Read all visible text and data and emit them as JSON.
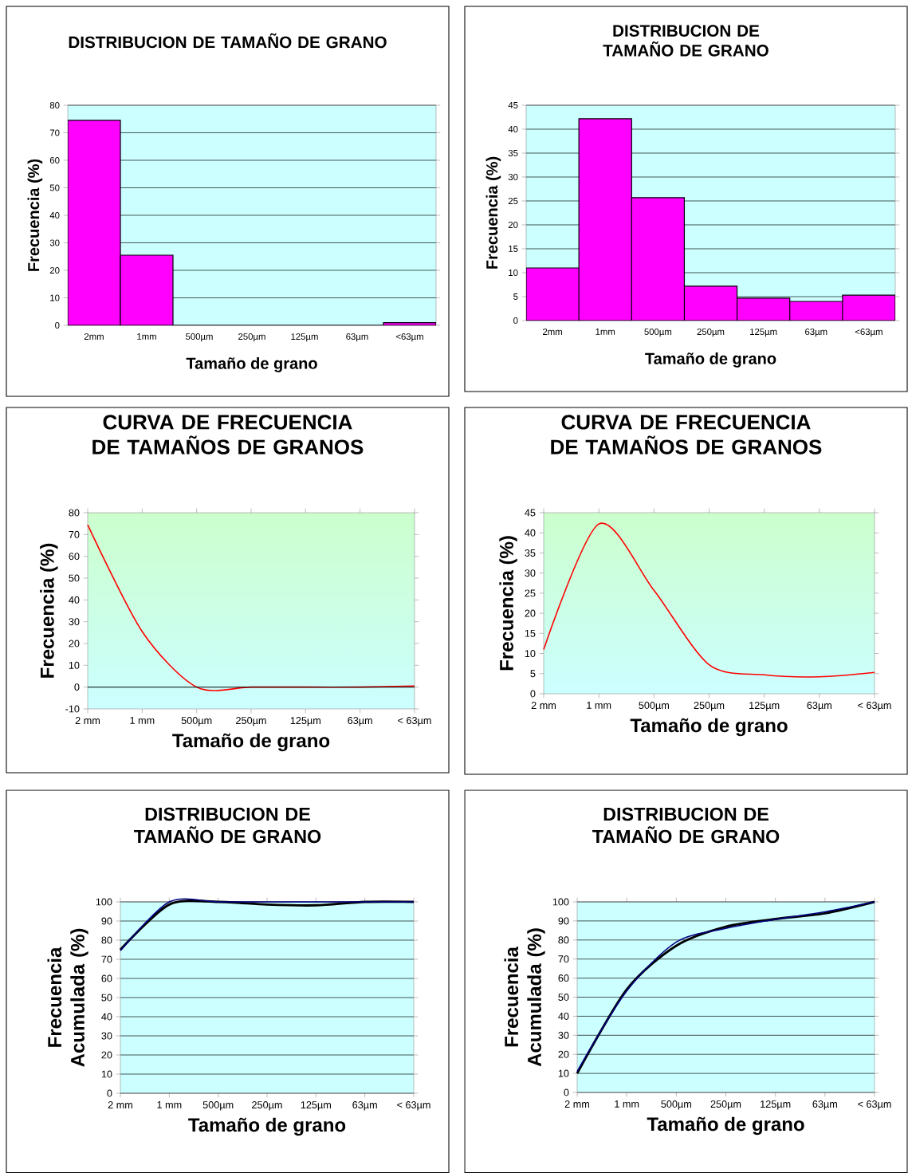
{
  "chart_data": [
    {
      "type": "bar",
      "title": "DISTRIBUCION DE TAMAÑO DE GRANO",
      "xlabel": "Tamaño de grano",
      "ylabel": "Frecuencia (%)",
      "categories": [
        "2mm",
        "1mm",
        "500µm",
        "250µm",
        "125µm",
        "63µm",
        "<63µm"
      ],
      "values": [
        74.5,
        25.5,
        0,
        0,
        0,
        0,
        1
      ],
      "color": "#ff00ff",
      "ylim": [
        0,
        80
      ],
      "yticks": [
        0,
        10,
        20,
        30,
        40,
        50,
        60,
        70,
        80
      ],
      "grid": "y"
    },
    {
      "type": "bar",
      "title": "DISTRIBUCION DE TAMAÑO DE GRANO",
      "xlabel": "Tamaño de grano",
      "ylabel": "Frecuencia (%)",
      "categories": [
        "2mm",
        "1mm",
        "500µm",
        "250µm",
        "125µm",
        "63µm",
        "<63µm"
      ],
      "values": [
        11,
        42.2,
        25.7,
        7.2,
        4.7,
        4,
        5.3
      ],
      "color": "#ff00ff",
      "ylim": [
        0,
        45
      ],
      "yticks": [
        0,
        5,
        10,
        15,
        20,
        25,
        30,
        35,
        40,
        45
      ],
      "grid": "y"
    },
    {
      "type": "line",
      "title": "CURVA DE FRECUENCIA DE TAMAÑOS DE GRANOS",
      "xlabel": "Tamaño de grano",
      "ylabel": "Frecuencia (%)",
      "categories": [
        "2 mm",
        "1 mm",
        "500µm",
        "250µm",
        "125µm",
        "63µm",
        "< 63µm"
      ],
      "values": [
        74.5,
        25.5,
        0,
        0,
        0,
        0,
        0.5
      ],
      "color": "#ff0000",
      "ylim": [
        -10,
        80
      ],
      "yticks": [
        -10,
        0,
        10,
        20,
        30,
        40,
        50,
        60,
        70,
        80
      ],
      "ref_lines": [
        {
          "axis": "y",
          "value": 0,
          "color": "#000000"
        }
      ]
    },
    {
      "type": "line",
      "title": "CURVA DE FRECUENCIA DE TAMAÑOS DE GRANOS",
      "xlabel": "Tamaño de grano",
      "ylabel": "Frecuencia (%)",
      "categories": [
        "2 mm",
        "1 mm",
        "500µm",
        "250µm",
        "125µm",
        "63µm",
        "< 63µm"
      ],
      "values": [
        11,
        42.2,
        25.7,
        7.2,
        4.7,
        4.2,
        5.3
      ],
      "color": "#ff0000",
      "ylim": [
        0,
        45
      ],
      "yticks": [
        0,
        5,
        10,
        15,
        20,
        25,
        30,
        35,
        40,
        45
      ]
    },
    {
      "type": "line",
      "title": "DISTRIBUCION DE TAMAÑO DE GRANO",
      "xlabel": "Tamaño de grano",
      "ylabel": "Frecuencia Acumulada (%)",
      "categories": [
        "2 mm",
        "1 mm",
        "500µm",
        "250µm",
        "125µm",
        "63µm",
        "< 63µm"
      ],
      "series": [
        {
          "color": "#000080",
          "values": [
            74.5,
            100,
            100,
            100,
            100,
            100,
            100
          ]
        },
        {
          "color": "#000000",
          "values": [
            75,
            98.6,
            100,
            98.6,
            98.2,
            100,
            100
          ]
        }
      ],
      "ylim": [
        0,
        100
      ],
      "yticks": [
        0,
        10,
        20,
        30,
        40,
        50,
        60,
        70,
        80,
        90,
        100
      ],
      "grid": "y"
    },
    {
      "type": "line",
      "title": "DISTRIBUCION DE TAMAÑO DE GRANO",
      "xlabel": "Tamaño de grano",
      "ylabel": "Frecuencia Acumulada (%)",
      "categories": [
        "2 mm",
        "1 mm",
        "500µm",
        "250µm",
        "125µm",
        "63µm",
        "< 63µm"
      ],
      "series": [
        {
          "color": "#000080",
          "values": [
            11,
            53.2,
            78.9,
            86.1,
            90.8,
            94.8,
            100
          ]
        },
        {
          "color": "#000000",
          "values": [
            10,
            54,
            77,
            87,
            91,
            94,
            100
          ]
        }
      ],
      "ylim": [
        0,
        100
      ],
      "yticks": [
        0,
        10,
        20,
        30,
        40,
        50,
        60,
        70,
        80,
        90,
        100
      ],
      "grid": "y"
    }
  ]
}
